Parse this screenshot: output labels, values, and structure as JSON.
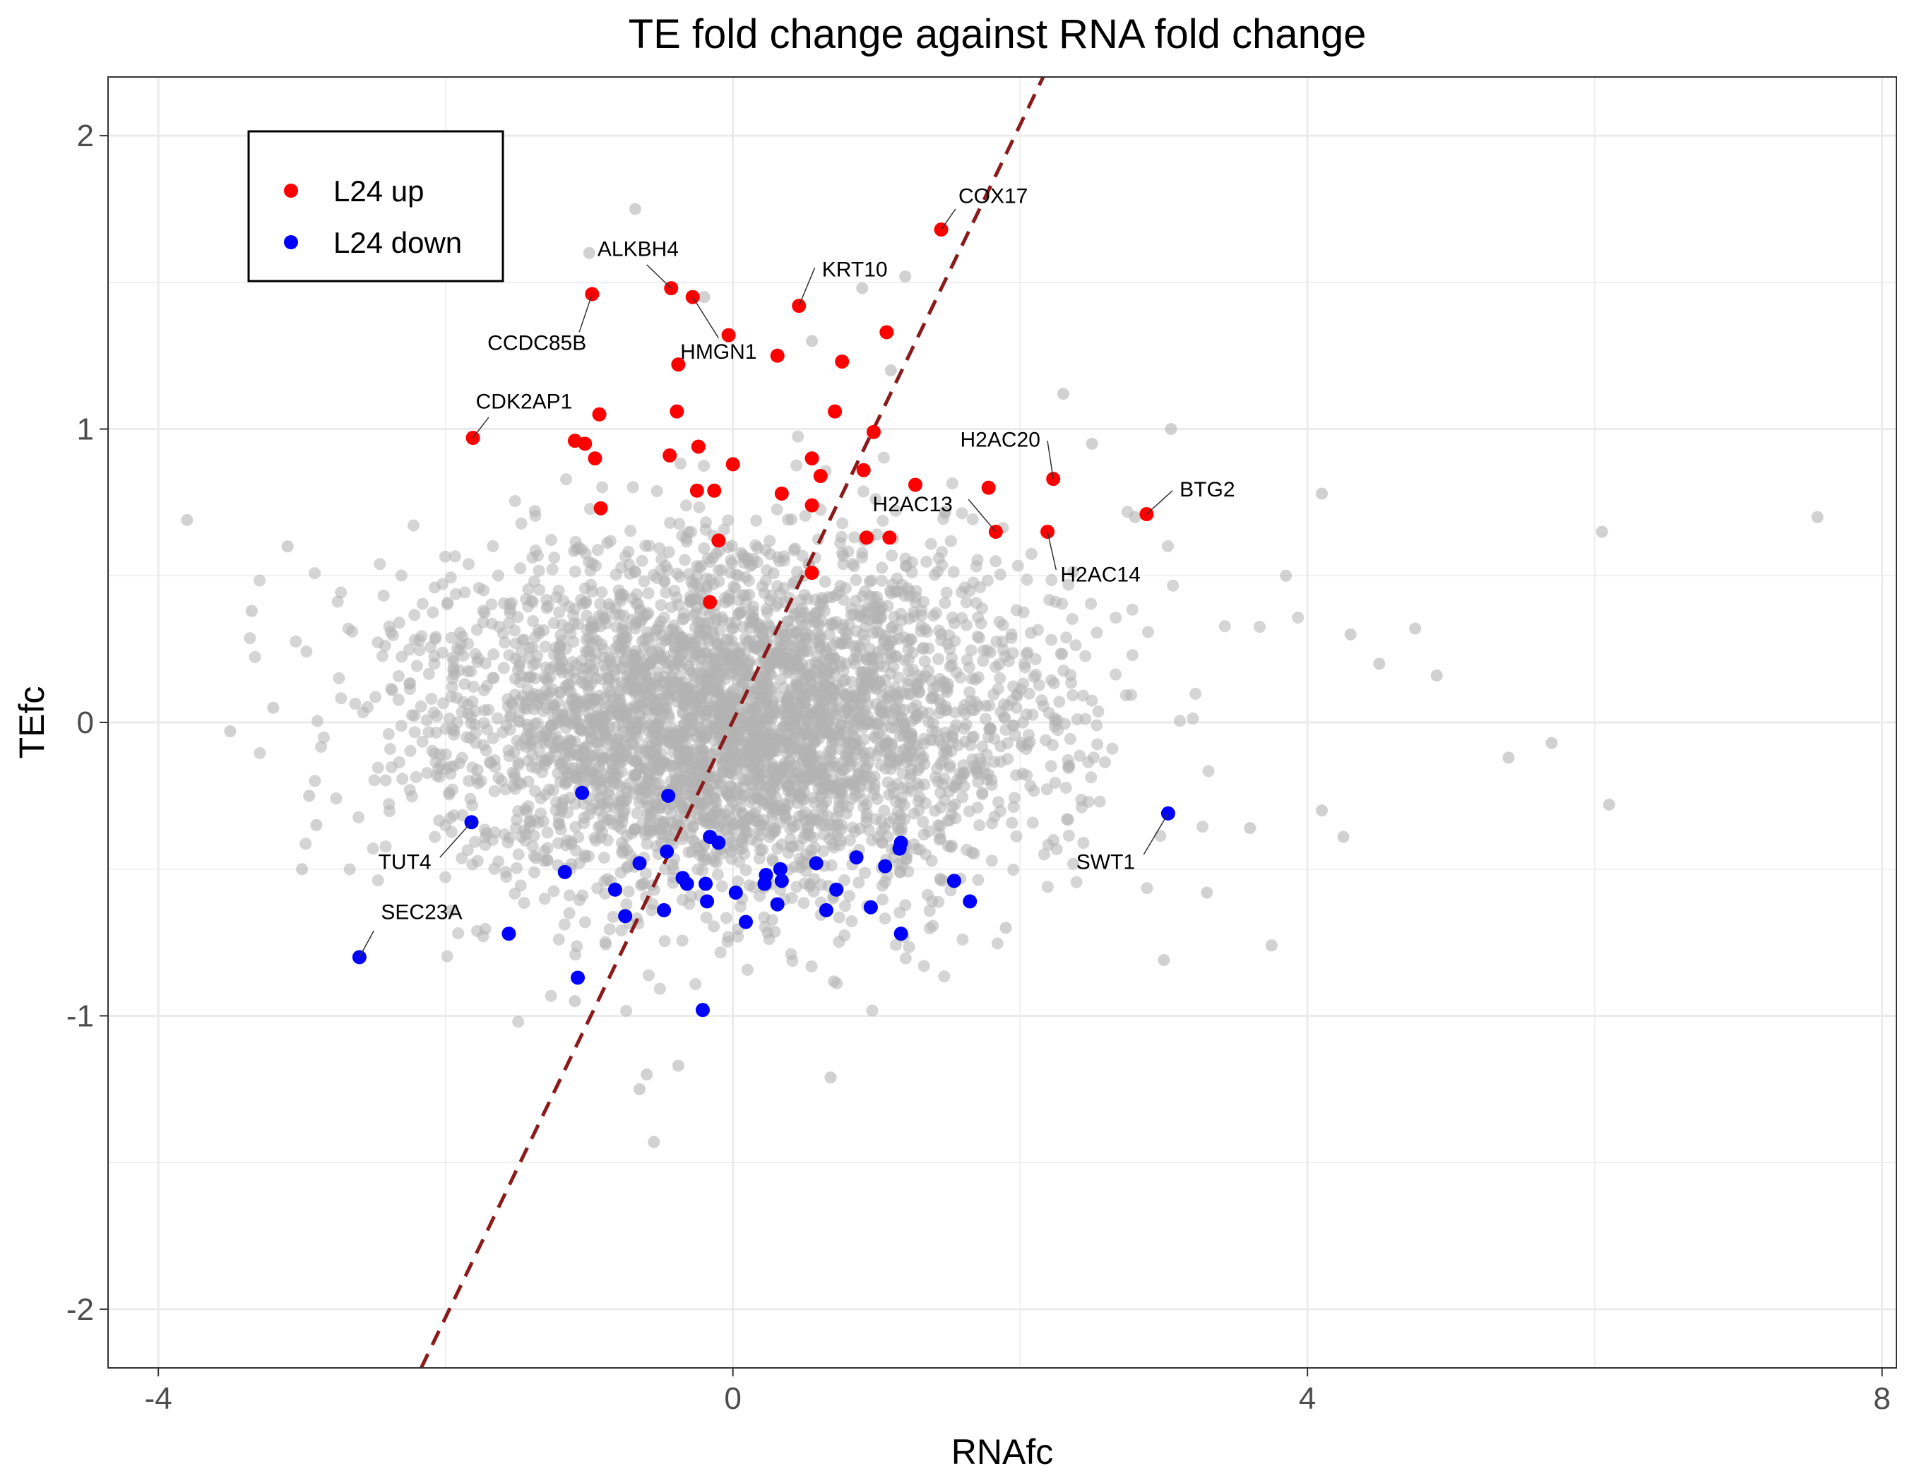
{
  "chart_data": {
    "type": "scatter",
    "title": "TE fold change against RNA fold change",
    "xlabel": "RNAfc",
    "ylabel": "TEfc",
    "xlim": [
      -4.35,
      8.1
    ],
    "ylim": [
      -2.2,
      2.2
    ],
    "x_ticks": [
      -4,
      0,
      4,
      8
    ],
    "y_ticks": [
      -2,
      -1,
      0,
      1,
      2
    ],
    "grid": true,
    "legend_position": "top-left",
    "reference_line": {
      "style": "dashed",
      "color": "#8b1a1a",
      "points": [
        [
          -2.17,
          -2.2
        ],
        [
          2.16,
          2.2
        ]
      ]
    },
    "background_cloud": {
      "color": "#b3b3b3",
      "center": [
        0.0,
        0.0
      ],
      "sd": [
        1.05,
        0.3
      ],
      "seed": 42
    },
    "background_outliers": [
      [
        -3.8,
        0.69
      ],
      [
        -3.5,
        -0.03
      ],
      [
        -3.35,
        0.38
      ],
      [
        -3.1,
        0.6
      ],
      [
        -2.95,
        -0.25
      ],
      [
        -3.2,
        0.05
      ],
      [
        -1.0,
        1.6
      ],
      [
        -0.68,
        1.75
      ],
      [
        -0.2,
        1.45
      ],
      [
        0.55,
        1.3
      ],
      [
        0.9,
        1.48
      ],
      [
        1.2,
        1.52
      ],
      [
        1.1,
        1.2
      ],
      [
        2.3,
        1.12
      ],
      [
        2.5,
        0.95
      ],
      [
        3.05,
        1.0
      ],
      [
        2.8,
        0.7
      ],
      [
        3.85,
        0.5
      ],
      [
        4.1,
        0.78
      ],
      [
        4.3,
        0.3
      ],
      [
        4.5,
        0.2
      ],
      [
        4.75,
        0.32
      ],
      [
        4.9,
        0.16
      ],
      [
        5.4,
        -0.12
      ],
      [
        5.7,
        -0.07
      ],
      [
        6.05,
        0.65
      ],
      [
        6.1,
        -0.28
      ],
      [
        7.55,
        0.7
      ],
      [
        3.75,
        -0.76
      ],
      [
        3.0,
        -0.81
      ],
      [
        1.9,
        -0.7
      ],
      [
        -0.55,
        -1.43
      ],
      [
        -0.6,
        -1.2
      ],
      [
        -0.38,
        -1.17
      ],
      [
        0.68,
        -1.21
      ],
      [
        -0.65,
        -1.25
      ],
      [
        -1.1,
        -0.95
      ],
      [
        3.3,
        -0.58
      ],
      [
        4.1,
        -0.3
      ],
      [
        4.25,
        -0.39
      ],
      [
        3.6,
        -0.36
      ],
      [
        -3.0,
        -0.5
      ],
      [
        -2.9,
        -0.35
      ]
    ],
    "series": [
      {
        "name": "L24 up",
        "color": "#ff0000",
        "points": [
          [
            -1.81,
            0.97
          ],
          [
            -0.98,
            1.46
          ],
          [
            -0.43,
            1.48
          ],
          [
            -0.28,
            1.45
          ],
          [
            -0.03,
            1.32
          ],
          [
            0.31,
            1.25
          ],
          [
            0.46,
            1.42
          ],
          [
            -0.38,
            1.22
          ],
          [
            -0.39,
            1.06
          ],
          [
            -1.1,
            0.96
          ],
          [
            -1.03,
            0.95
          ],
          [
            -0.93,
            1.05
          ],
          [
            -0.96,
            0.9
          ],
          [
            -0.92,
            0.73
          ],
          [
            -0.44,
            0.91
          ],
          [
            -0.24,
            0.94
          ],
          [
            -0.25,
            0.79
          ],
          [
            -0.13,
            0.79
          ],
          [
            0.0,
            0.88
          ],
          [
            0.76,
            1.23
          ],
          [
            1.07,
            1.33
          ],
          [
            0.71,
            1.06
          ],
          [
            0.98,
            0.99
          ],
          [
            0.55,
            0.9
          ],
          [
            0.61,
            0.84
          ],
          [
            0.91,
            0.86
          ],
          [
            0.34,
            0.78
          ],
          [
            0.55,
            0.74
          ],
          [
            1.27,
            0.81
          ],
          [
            1.78,
            0.8
          ],
          [
            0.93,
            0.63
          ],
          [
            1.09,
            0.63
          ],
          [
            -0.1,
            0.62
          ],
          [
            0.55,
            0.51
          ],
          [
            -0.16,
            0.41
          ],
          [
            1.45,
            1.68
          ],
          [
            2.23,
            0.83
          ],
          [
            2.19,
            0.65
          ],
          [
            1.83,
            0.65
          ],
          [
            2.88,
            0.71
          ]
        ]
      },
      {
        "name": "L24 down",
        "color": "#0000ff",
        "points": [
          [
            -2.6,
            -0.8
          ],
          [
            -1.82,
            -0.34
          ],
          [
            -1.56,
            -0.72
          ],
          [
            -1.08,
            -0.87
          ],
          [
            -1.05,
            -0.24
          ],
          [
            -1.17,
            -0.51
          ],
          [
            -0.82,
            -0.57
          ],
          [
            -0.75,
            -0.66
          ],
          [
            -0.65,
            -0.48
          ],
          [
            -0.48,
            -0.64
          ],
          [
            -0.46,
            -0.44
          ],
          [
            -0.45,
            -0.25
          ],
          [
            -0.35,
            -0.53
          ],
          [
            -0.32,
            -0.55
          ],
          [
            -0.19,
            -0.55
          ],
          [
            -0.18,
            -0.61
          ],
          [
            -0.16,
            -0.39
          ],
          [
            -0.1,
            -0.41
          ],
          [
            0.02,
            -0.58
          ],
          [
            0.09,
            -0.68
          ],
          [
            0.22,
            -0.55
          ],
          [
            0.23,
            -0.52
          ],
          [
            0.31,
            -0.62
          ],
          [
            0.33,
            -0.5
          ],
          [
            0.34,
            -0.54
          ],
          [
            0.58,
            -0.48
          ],
          [
            0.65,
            -0.64
          ],
          [
            0.72,
            -0.57
          ],
          [
            0.86,
            -0.46
          ],
          [
            0.96,
            -0.63
          ],
          [
            1.06,
            -0.49
          ],
          [
            1.16,
            -0.43
          ],
          [
            1.17,
            -0.72
          ],
          [
            1.54,
            -0.54
          ],
          [
            1.65,
            -0.61
          ],
          [
            -0.21,
            -0.98
          ],
          [
            1.17,
            -0.41
          ],
          [
            3.03,
            -0.31
          ]
        ]
      }
    ],
    "annotations": [
      {
        "label": "COX17",
        "point": [
          1.45,
          1.68
        ],
        "text_at": [
          1.57,
          1.77
        ],
        "anchor": "start",
        "leader_to": [
          1.55,
          1.75
        ]
      },
      {
        "label": "ALKBH4",
        "point": [
          -0.43,
          1.48
        ],
        "text_at": [
          -0.66,
          1.59
        ],
        "anchor": "middle",
        "leader_to": [
          -0.6,
          1.56
        ]
      },
      {
        "label": "KRT10",
        "point": [
          0.46,
          1.42
        ],
        "text_at": [
          0.62,
          1.52
        ],
        "anchor": "start",
        "leader_to": [
          0.57,
          1.55
        ]
      },
      {
        "label": "CCDC85B",
        "point": [
          -0.98,
          1.46
        ],
        "text_at": [
          -1.02,
          1.27
        ],
        "anchor": "end",
        "leader_to": [
          -1.07,
          1.33
        ]
      },
      {
        "label": "HMGN1",
        "point": [
          -0.28,
          1.45
        ],
        "text_at": [
          -0.1,
          1.24
        ],
        "anchor": "middle",
        "leader_to": [
          -0.1,
          1.31
        ]
      },
      {
        "label": "CDK2AP1",
        "point": [
          -1.81,
          0.97
        ],
        "text_at": [
          -1.79,
          1.07
        ],
        "anchor": "start",
        "leader_to": [
          -1.7,
          1.04
        ]
      },
      {
        "label": "H2AC20",
        "point": [
          2.23,
          0.83
        ],
        "text_at": [
          2.14,
          0.94
        ],
        "anchor": "end",
        "leader_to": [
          2.19,
          0.96
        ]
      },
      {
        "label": "H2AC13",
        "point": [
          1.83,
          0.65
        ],
        "text_at": [
          1.53,
          0.72
        ],
        "anchor": "end",
        "leader_to": [
          1.64,
          0.76
        ]
      },
      {
        "label": "H2AC14",
        "point": [
          2.19,
          0.65
        ],
        "text_at": [
          2.28,
          0.48
        ],
        "anchor": "start",
        "leader_to": [
          2.25,
          0.52
        ]
      },
      {
        "label": "BTG2",
        "point": [
          2.88,
          0.71
        ],
        "text_at": [
          3.11,
          0.77
        ],
        "anchor": "start",
        "leader_to": [
          3.06,
          0.79
        ]
      },
      {
        "label": "TUT4",
        "point": [
          -1.82,
          -0.34
        ],
        "text_at": [
          -2.1,
          -0.5
        ],
        "anchor": "end",
        "leader_to": [
          -2.04,
          -0.46
        ]
      },
      {
        "label": "SEC23A",
        "point": [
          -2.6,
          -0.8
        ],
        "text_at": [
          -2.45,
          -0.67
        ],
        "anchor": "start",
        "leader_to": [
          -2.5,
          -0.71
        ]
      },
      {
        "label": "SWT1",
        "point": [
          3.03,
          -0.31
        ],
        "text_at": [
          2.8,
          -0.5
        ],
        "anchor": "end",
        "leader_to": [
          2.86,
          -0.45
        ]
      }
    ]
  }
}
